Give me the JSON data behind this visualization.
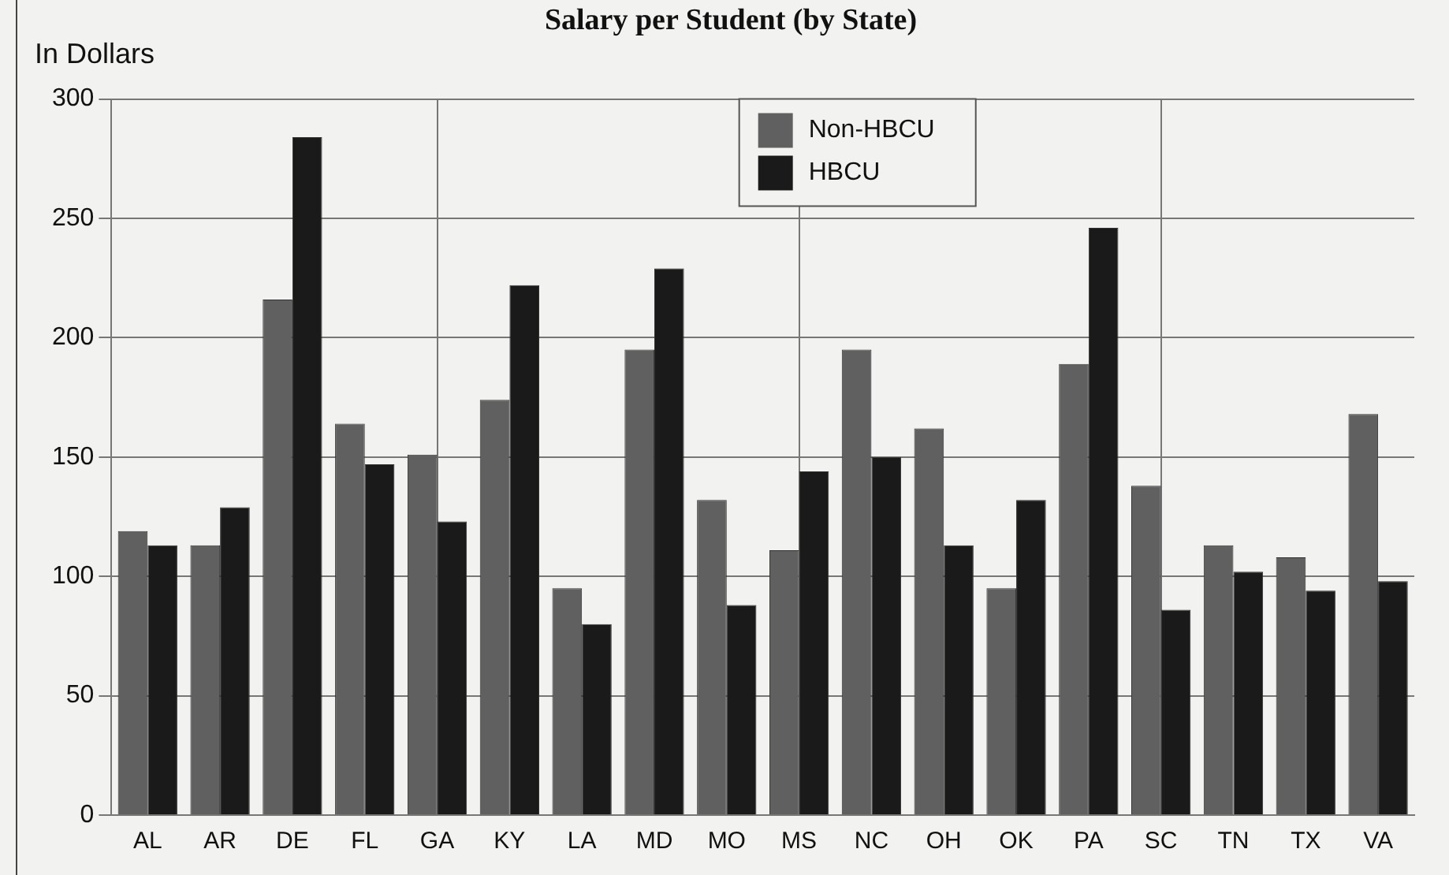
{
  "chart_data": {
    "type": "bar",
    "title": "Salary per Student (by State)",
    "ylabel": "In Dollars",
    "categories": [
      "AL",
      "AR",
      "DE",
      "FL",
      "GA",
      "KY",
      "LA",
      "MD",
      "MO",
      "MS",
      "NC",
      "OH",
      "OK",
      "PA",
      "SC",
      "TN",
      "TX",
      "VA"
    ],
    "series": [
      {
        "name": "Non-HBCU",
        "color": "#606060",
        "values": [
          119,
          113,
          216,
          164,
          151,
          174,
          95,
          195,
          132,
          111,
          195,
          162,
          95,
          189,
          138,
          113,
          108,
          168
        ]
      },
      {
        "name": "HBCU",
        "color": "#1a1a1a",
        "values": [
          113,
          129,
          284,
          147,
          123,
          222,
          80,
          229,
          88,
          144,
          150,
          113,
          132,
          246,
          86,
          102,
          94,
          98
        ]
      }
    ],
    "ylim": [
      0,
      300
    ],
    "yticks": [
      0,
      50,
      100,
      150,
      200,
      250,
      300
    ],
    "grid": true,
    "legend": "top"
  }
}
